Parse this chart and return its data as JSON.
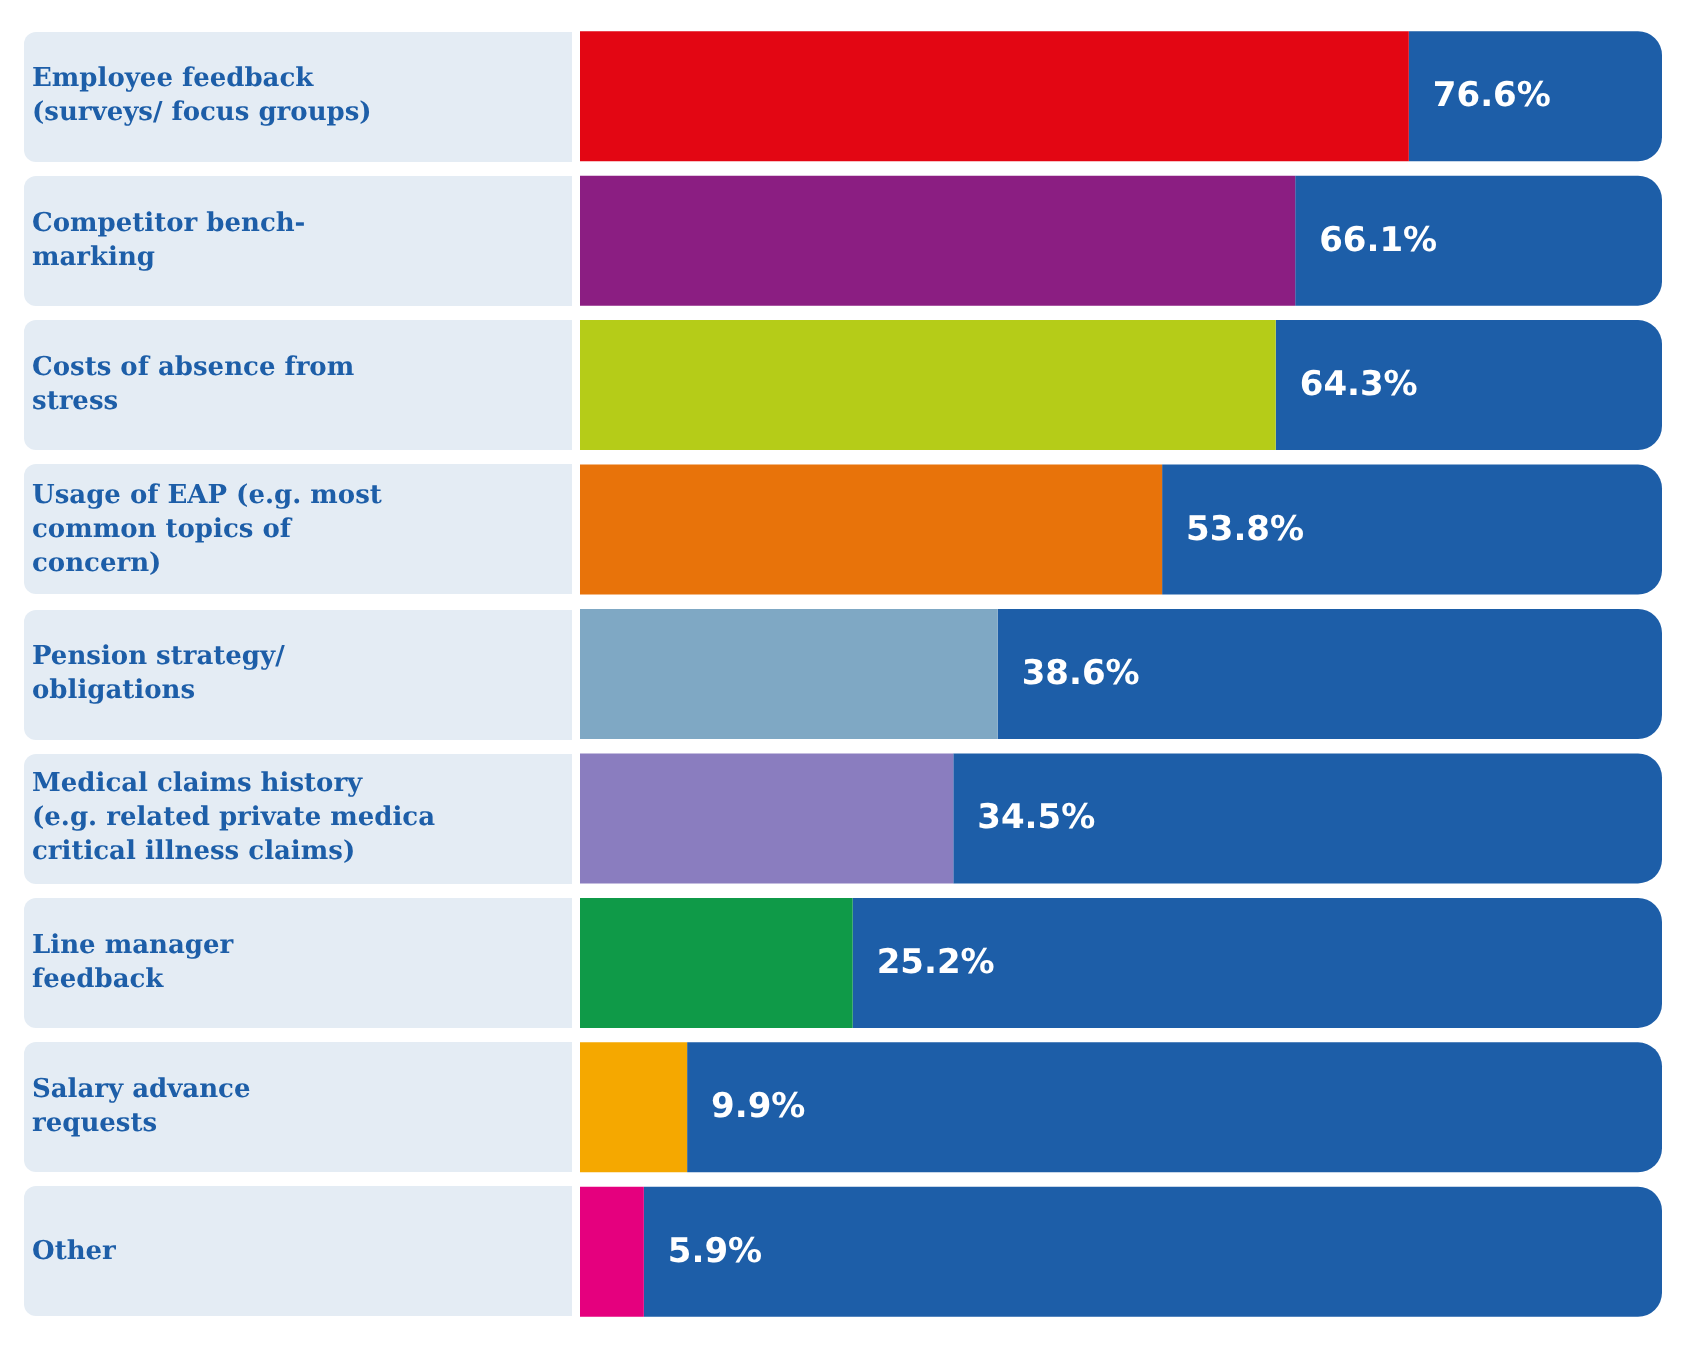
{
  "chart_data": {
    "type": "bar",
    "orientation": "horizontal",
    "stacked": true,
    "categories": [
      "Employee feedback\n(surveys/ focus groups)",
      "Competitor bench-\nmarking",
      "Costs of absence from\nstress",
      "Usage of EAP (e.g. most\ncommon topics of\nconcern)",
      "Pension strategy/\nobligations",
      "Medical claims history\n(e.g. related private medica\ncritical illness claims)",
      "Line manager\nfeedback",
      "Salary advance\nrequests",
      "Other"
    ],
    "series": [
      {
        "values": [
          76.6,
          66.1,
          64.3,
          53.8,
          38.6,
          34.5,
          25.2,
          9.9,
          5.9
        ],
        "colors": [
          "#e30613",
          "#8b1e82",
          "#b5cc18",
          "#e8730a",
          "#7fa8c4",
          "#8a7dbf",
          "#0f9a48",
          "#f5a800",
          "#e5007e"
        ],
        "value_labels": [
          "76.6%",
          "66.1%",
          "64.3%",
          "53.8%",
          "38.6%",
          "34.5%",
          "25.2%",
          "9.9%",
          "5.9%"
        ]
      },
      {
        "values": [
          23.4,
          33.9,
          35.7,
          46.2,
          61.4,
          65.5,
          74.8,
          90.1,
          94.1
        ],
        "color": "#1d5ea8"
      }
    ]
  }
}
